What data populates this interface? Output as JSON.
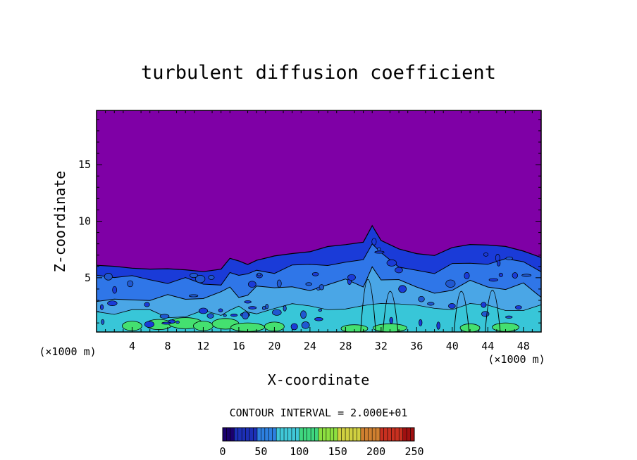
{
  "chart_data": {
    "type": "heatmap",
    "title": "turbulent diffusion coefficient",
    "xlabel": "X-coordinate",
    "ylabel": "Z-coordinate",
    "x_unit_left": "(×1000 m)",
    "x_unit_right": "(×1000 m)",
    "xlim": [
      0,
      50
    ],
    "ylim": [
      0.2,
      19.8
    ],
    "xticks": [
      4,
      8,
      12,
      16,
      20,
      24,
      28,
      32,
      36,
      40,
      44,
      48
    ],
    "yticks": [
      5,
      10,
      15
    ],
    "background_value": 0,
    "background_color": "#7f00a6",
    "boundary_layer_top": [
      {
        "x": 0,
        "z": 6.1
      },
      {
        "x": 2,
        "z": 6.0
      },
      {
        "x": 4,
        "z": 5.9
      },
      {
        "x": 6,
        "z": 5.8
      },
      {
        "x": 8,
        "z": 5.8
      },
      {
        "x": 10,
        "z": 5.7
      },
      {
        "x": 12,
        "z": 5.6
      },
      {
        "x": 14,
        "z": 5.7
      },
      {
        "x": 15,
        "z": 6.7
      },
      {
        "x": 16,
        "z": 6.5
      },
      {
        "x": 17,
        "z": 6.2
      },
      {
        "x": 18,
        "z": 6.5
      },
      {
        "x": 20,
        "z": 6.9
      },
      {
        "x": 22,
        "z": 7.2
      },
      {
        "x": 24,
        "z": 7.3
      },
      {
        "x": 26,
        "z": 7.8
      },
      {
        "x": 28,
        "z": 7.9
      },
      {
        "x": 30,
        "z": 8.2
      },
      {
        "x": 31,
        "z": 9.6
      },
      {
        "x": 32,
        "z": 8.3
      },
      {
        "x": 34,
        "z": 7.6
      },
      {
        "x": 36,
        "z": 7.2
      },
      {
        "x": 38,
        "z": 6.9
      },
      {
        "x": 40,
        "z": 7.6
      },
      {
        "x": 42,
        "z": 8.0
      },
      {
        "x": 44,
        "z": 7.9
      },
      {
        "x": 46,
        "z": 7.7
      },
      {
        "x": 48,
        "z": 7.4
      },
      {
        "x": 50,
        "z": 6.8
      }
    ],
    "contour_interval_label": "CONTOUR INTERVAL = 2.000E+01",
    "contour_interval": 20,
    "colorbar": {
      "min": 0,
      "max": 250,
      "tick_labels": [
        "0",
        "50",
        "100",
        "150",
        "200",
        "250"
      ],
      "colors": [
        "#1a006e",
        "#1c2fb6",
        "#2d80e0",
        "#40c8d8",
        "#3fd77f",
        "#8de040",
        "#d0d040",
        "#d08030",
        "#c83020",
        "#a01010"
      ]
    },
    "field_colors": {
      "dark": "#1a3bd8",
      "medium": "#2f76e8",
      "light": "#4aa6e6",
      "cyan": "#38c6d8",
      "green": "#44e070"
    }
  }
}
